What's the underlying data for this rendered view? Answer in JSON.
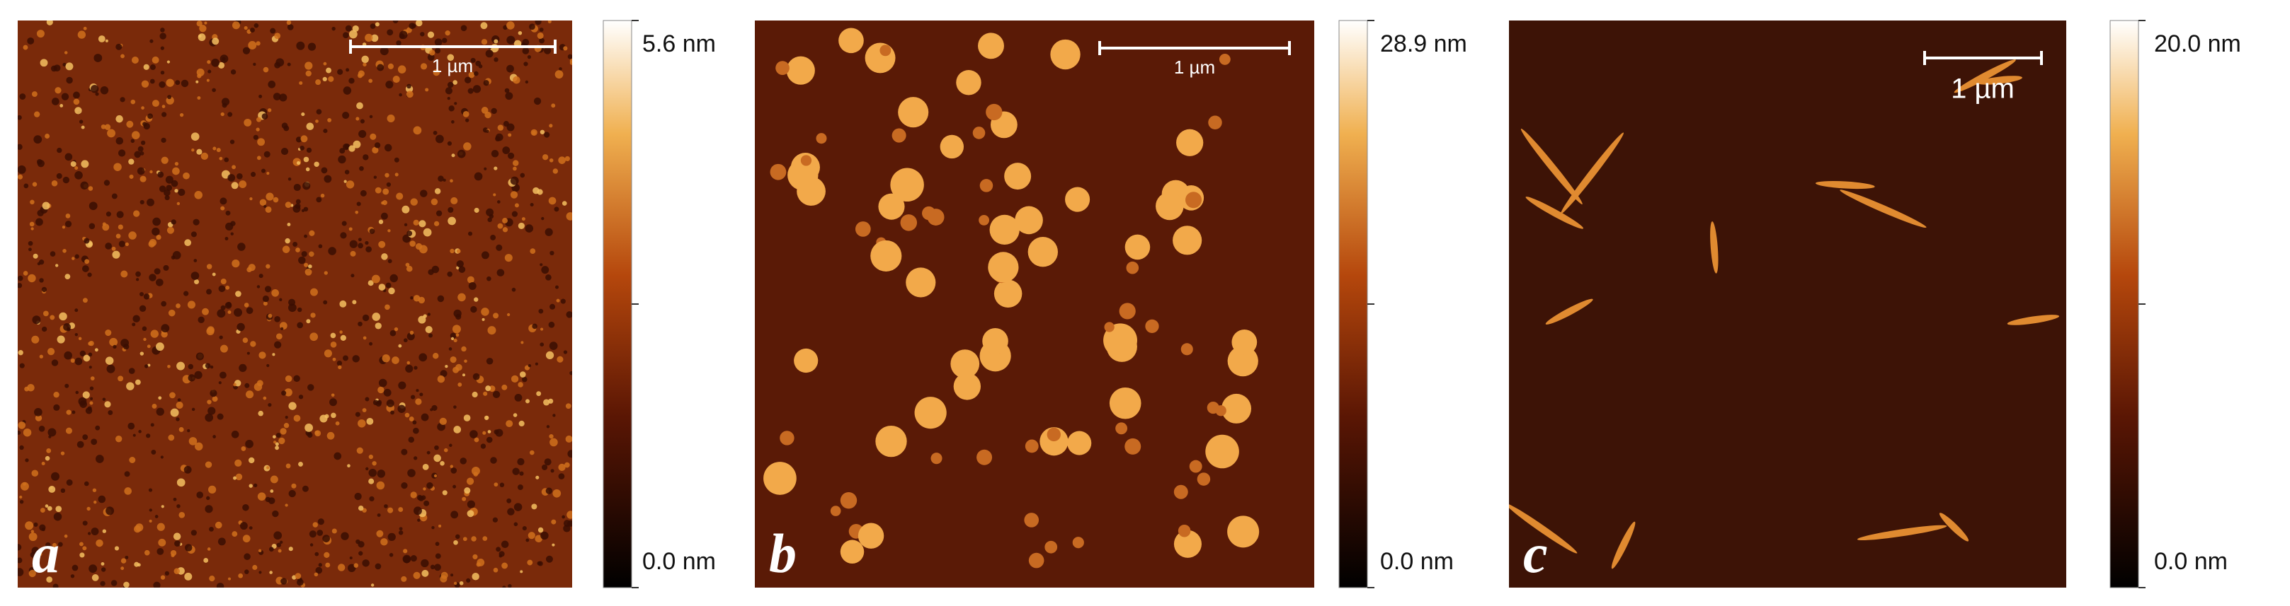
{
  "panels": [
    {
      "label": "a",
      "scale_bar": "1 µm",
      "colorbar": {
        "max": "5.6 nm",
        "min": "0.0 nm"
      }
    },
    {
      "label": "b",
      "scale_bar": "1 µm",
      "colorbar": {
        "max": "28.9 nm",
        "min": "0.0 nm"
      }
    },
    {
      "label": "c",
      "scale_bar": "1 µm",
      "colorbar": {
        "max": "20.0 nm",
        "min": "0.0 nm"
      }
    }
  ]
}
